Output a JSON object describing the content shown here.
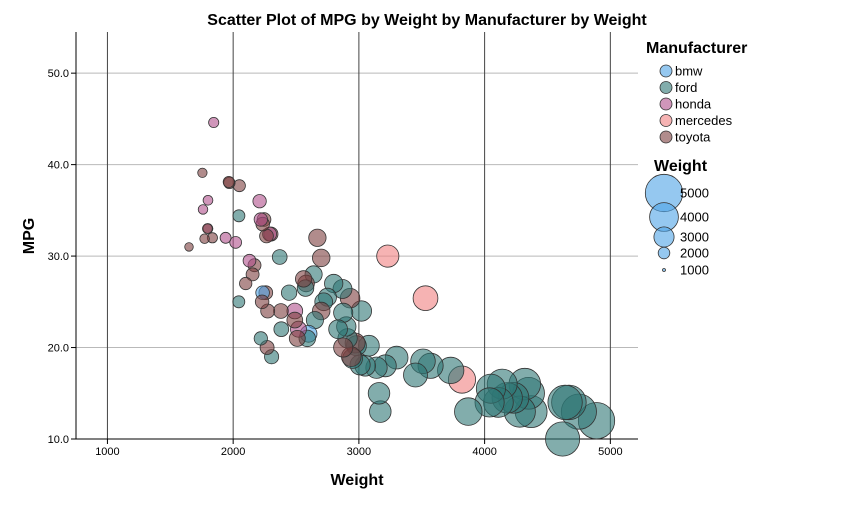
{
  "chart_data": {
    "type": "scatter",
    "title": "Scatter Plot of MPG by Weight by Manufacturer by Weight",
    "xlabel": "Weight",
    "ylabel": "MPG",
    "xlim": [
      750,
      5220
    ],
    "ylim": [
      10,
      54.5
    ],
    "x_ticks": [
      1000,
      2000,
      3000,
      4000,
      5000
    ],
    "x_tick_labels": [
      "1000",
      "2000",
      "3000",
      "4000",
      "5000"
    ],
    "y_ticks": [
      10,
      20,
      30,
      40,
      50
    ],
    "y_tick_labels": [
      "10.0",
      "20.0",
      "30.0",
      "40.0",
      "50.0"
    ],
    "grid": {
      "vertical": true,
      "horizontal": true
    },
    "legend_position": "right",
    "color_legend_title": "Manufacturer",
    "size_legend_title": "Weight",
    "size_variable": "Weight",
    "size_legend": [
      {
        "value": 5000,
        "label": "5000"
      },
      {
        "value": 4000,
        "label": "4000"
      },
      {
        "value": 3000,
        "label": "3000"
      },
      {
        "value": 2000,
        "label": "2000"
      },
      {
        "value": 1000,
        "label": "1000"
      }
    ],
    "series": [
      {
        "name": "bmw",
        "color": "#4fa3e6",
        "points": [
          [
            2234,
            26
          ],
          [
            2600,
            21.5
          ]
        ]
      },
      {
        "name": "ford",
        "color": "#2e7775",
        "points": [
          [
            2046,
            34.4
          ],
          [
            2045,
            25
          ],
          [
            2220,
            21
          ],
          [
            2306,
            19
          ],
          [
            2370,
            29.9
          ],
          [
            2383,
            22
          ],
          [
            2445,
            26
          ],
          [
            2575,
            26.5
          ],
          [
            2590,
            21
          ],
          [
            2640,
            28
          ],
          [
            2650,
            23
          ],
          [
            2720,
            25
          ],
          [
            2750,
            25.5
          ],
          [
            2800,
            27
          ],
          [
            2835,
            22
          ],
          [
            2870,
            26.4
          ],
          [
            2875,
            23.8
          ],
          [
            2900,
            22.3
          ],
          [
            2910,
            21
          ],
          [
            2950,
            18.8
          ],
          [
            2980,
            20.2
          ],
          [
            3010,
            18.1
          ],
          [
            3020,
            24
          ],
          [
            3050,
            18
          ],
          [
            3080,
            20.2
          ],
          [
            3140,
            17.8
          ],
          [
            3160,
            15
          ],
          [
            3170,
            13
          ],
          [
            3210,
            18
          ],
          [
            3300,
            18.9
          ],
          [
            3450,
            17
          ],
          [
            3510,
            18.5
          ],
          [
            3570,
            18
          ],
          [
            3730,
            17.5
          ],
          [
            3870,
            13
          ],
          [
            4040,
            14
          ],
          [
            4050,
            15.5
          ],
          [
            4110,
            14
          ],
          [
            4140,
            16
          ],
          [
            4180,
            14.5
          ],
          [
            4230,
            14.5
          ],
          [
            4280,
            13
          ],
          [
            4320,
            16
          ],
          [
            4350,
            15
          ],
          [
            4370,
            13
          ],
          [
            4620,
            10
          ],
          [
            4640,
            14
          ],
          [
            4670,
            14
          ],
          [
            4750,
            13
          ],
          [
            4890,
            12
          ]
        ]
      },
      {
        "name": "honda",
        "color": "#b0508c",
        "points": [
          [
            1845,
            44.6
          ],
          [
            1760,
            35.1
          ],
          [
            1800,
            36.1
          ],
          [
            1800,
            33
          ],
          [
            1940,
            32
          ],
          [
            2020,
            31.5
          ],
          [
            2130,
            29.5
          ],
          [
            2210,
            36
          ],
          [
            2220,
            34
          ],
          [
            2290,
            32.4
          ],
          [
            2490,
            24
          ],
          [
            2520,
            22
          ]
        ]
      },
      {
        "name": "mercedes",
        "color": "#f08080",
        "points": [
          [
            3230,
            30
          ],
          [
            3530,
            25.4
          ],
          [
            3820,
            16.5
          ]
        ]
      },
      {
        "name": "toyota",
        "color": "#7d3f3f",
        "points": [
          [
            1649,
            31
          ],
          [
            1755,
            39.1
          ],
          [
            1773,
            31.9
          ],
          [
            1795,
            33
          ],
          [
            1835,
            32
          ],
          [
            1965,
            38.1
          ],
          [
            1970,
            38
          ],
          [
            2050,
            37.7
          ],
          [
            2100,
            27
          ],
          [
            2155,
            28
          ],
          [
            2170,
            29
          ],
          [
            2230,
            25
          ],
          [
            2235,
            33.5
          ],
          [
            2245,
            34
          ],
          [
            2260,
            26
          ],
          [
            2265,
            32.2
          ],
          [
            2270,
            20
          ],
          [
            2275,
            24
          ],
          [
            2300,
            32.4
          ],
          [
            2380,
            24
          ],
          [
            2490,
            23
          ],
          [
            2510,
            21
          ],
          [
            2560,
            27.5
          ],
          [
            2580,
            27
          ],
          [
            2670,
            32
          ],
          [
            2700,
            24
          ],
          [
            2700,
            29.8
          ],
          [
            2930,
            25.4
          ],
          [
            2940,
            19
          ],
          [
            2970,
            20.5
          ],
          [
            2875,
            20
          ]
        ]
      }
    ]
  }
}
